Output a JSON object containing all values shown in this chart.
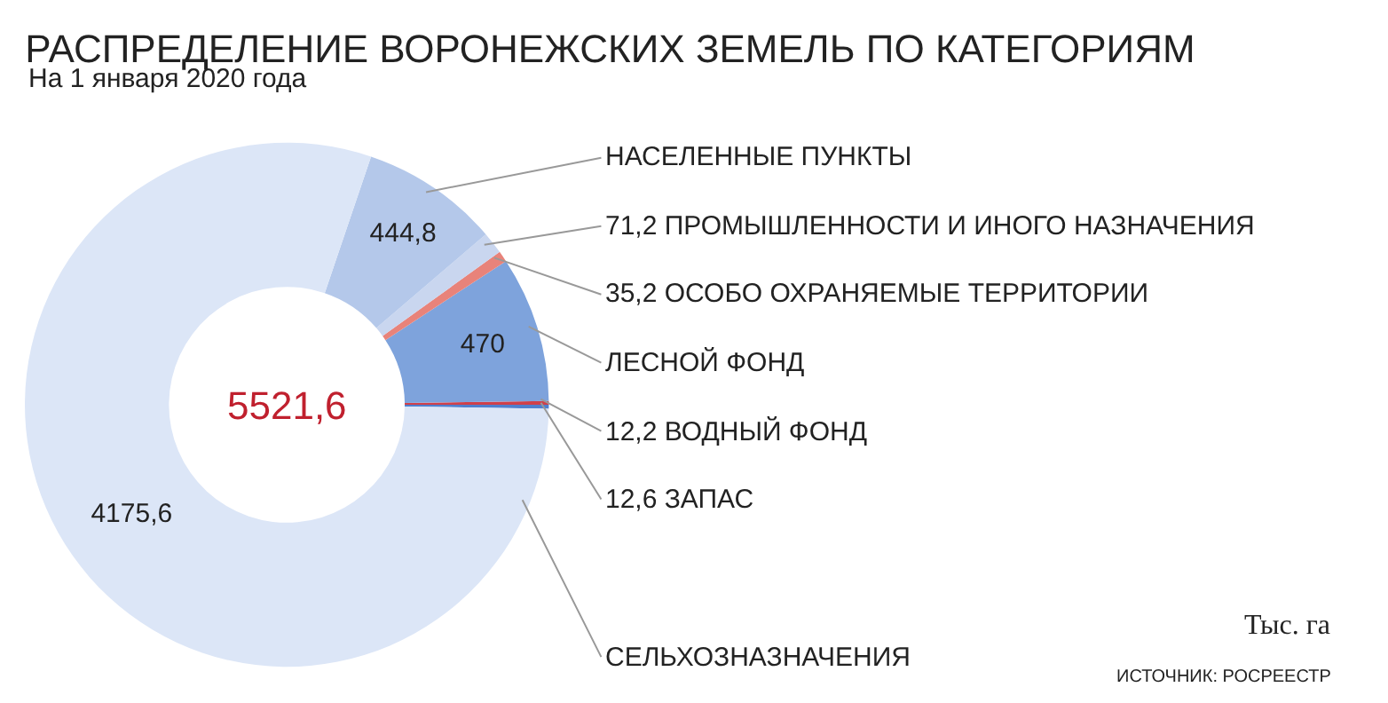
{
  "chart_data": {
    "type": "donut",
    "title": "РАСПРЕДЕЛЕНИЕ ВОРОНЕЖСКИХ ЗЕМЕЛЬ ПО КАТЕГОРИЯМ",
    "subtitle": "На 1 января 2020 года",
    "categories": [
      "ЗАПАС",
      "ВОДНЫЙ ФОНД",
      "ЛЕСНОЙ ФОНД",
      "ОСОБО ОХРАНЯЕМЫЕ ТЕРРИТОРИИ",
      "ПРОМЫШЛЕННОСТИ И ИНОГО НАЗНАЧЕНИЯ",
      "НАСЕЛЕННЫЕ ПУНКТЫ",
      "СЕЛЬХОЗНАЗНАЧЕНИЯ"
    ],
    "values": [
      12.6,
      12.2,
      470,
      35.2,
      71.2,
      444.8,
      4175.6
    ],
    "value_labels": [
      "12,6",
      "12,2",
      "470",
      "35,2",
      "71,2",
      "444,8",
      "4175,6"
    ],
    "colors": [
      "#4f7fce",
      "#d0404a",
      "#7ea3dc",
      "#e8837a",
      "#c9d6ef",
      "#b4c8ea",
      "#dce6f7"
    ],
    "annotations": [
      "5521,6",
      "Тыс. га",
      "ИСТОЧНИК: РОСРЕЕСТР"
    ],
    "legend": false
  }
}
